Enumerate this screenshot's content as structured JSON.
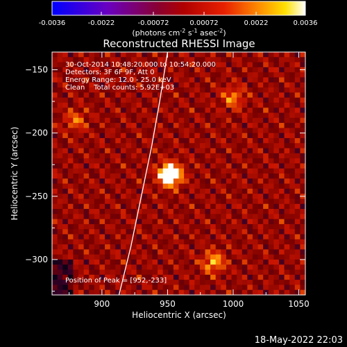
{
  "chart_data": {
    "type": "heatmap",
    "title": "Reconstructed RHESSI Image",
    "xlabel": "Heliocentric X (arcsec)",
    "ylabel": "Heliocentric Y (arcsec)",
    "xlim": [
      862,
      1055
    ],
    "ylim": [
      -328,
      -136
    ],
    "x_ticks": [
      900,
      950,
      1000,
      1050
    ],
    "y_ticks": [
      -150,
      -200,
      -250,
      -300
    ],
    "colorbar": {
      "ticks": [
        "-0.0036",
        "-0.0022",
        "-0.00072",
        "0.00072",
        "0.0022",
        "0.0036"
      ],
      "range": [
        -0.0036,
        0.0036
      ],
      "unit_label_prefix": "(photons cm",
      "unit_label_sup1": "-2",
      "unit_label_mid": " s",
      "unit_label_sup2": "-1",
      "unit_label_mid2": " asec",
      "unit_label_sup3": "-2",
      "unit_label_suffix": ")"
    },
    "annotations": [
      "30-Oct-2014 10:48:20.000 to 10:54:20.000",
      "Detectors: 3F 6F 9F, Att 0",
      "Energy Range: 12.0 - 25.0 keV",
      "Clean    Total counts: 5.92E+03"
    ],
    "peak_label": "Position of Peak = [952,-233]",
    "sources": [
      {
        "x": 952,
        "y": -233,
        "intensity": 1.0
      },
      {
        "x": 985,
        "y": -302,
        "intensity": 0.45
      },
      {
        "x": 1000,
        "y": -172,
        "intensity": 0.35
      },
      {
        "x": 880,
        "y": -190,
        "intensity": 0.3
      }
    ],
    "limb_curve_x": [
      913,
      922,
      930,
      938,
      944,
      950
    ],
    "limb_curve_y": [
      -328,
      -290,
      -250,
      -210,
      -175,
      -136
    ]
  },
  "footer": {
    "date": "18-May-2022 22:03"
  }
}
